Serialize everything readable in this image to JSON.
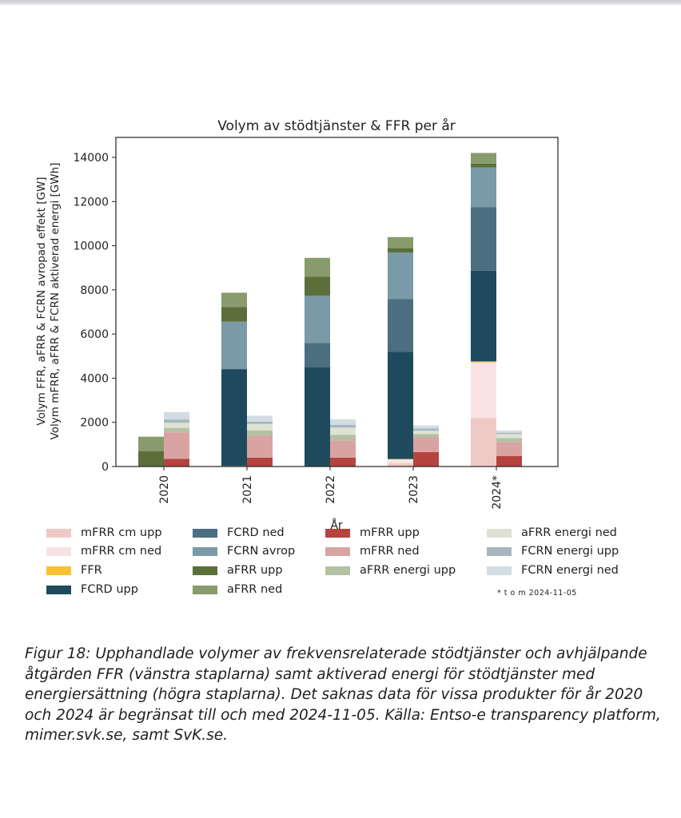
{
  "chart_data": {
    "type": "bar",
    "stacked": true,
    "title": "Volym av stödtjänster & FFR per år",
    "xlabel": "År",
    "ylabel_lines": [
      "Volym FFR, aFRR & FCRN avropad effekt [GW]",
      "Volym mFRR, aFRR & FCRN aktiverad energi [GWh]"
    ],
    "ylim": [
      0,
      14800
    ],
    "yticks": [
      0,
      2000,
      4000,
      6000,
      8000,
      10000,
      12000,
      14000
    ],
    "categories": [
      "2020",
      "2021",
      "2022",
      "2023",
      "2024*"
    ],
    "groups": [
      "vänstra staplarna",
      "högra staplarna"
    ],
    "series": [
      {
        "name": "mFRR cm upp",
        "group": 0,
        "color": "#efc9c6",
        "values": [
          0,
          0,
          0,
          150,
          2200
        ]
      },
      {
        "name": "mFRR cm ned",
        "group": 0,
        "color": "#f8e3e2",
        "values": [
          0,
          0,
          0,
          180,
          2520
        ]
      },
      {
        "name": "FFR",
        "group": 0,
        "color": "#f7c136",
        "values": [
          0,
          30,
          20,
          10,
          40
        ]
      },
      {
        "name": "FCRD upp",
        "group": 0,
        "color": "#1f4a5e",
        "values": [
          0,
          4380,
          4480,
          4850,
          4110
        ]
      },
      {
        "name": "FCRD ned",
        "group": 0,
        "color": "#4b6e80",
        "values": [
          0,
          0,
          1100,
          2400,
          2880
        ]
      },
      {
        "name": "FCRN avrop",
        "group": 0,
        "color": "#7a9aa7",
        "values": [
          0,
          2150,
          2140,
          2100,
          1790
        ]
      },
      {
        "name": "aFRR upp",
        "group": 0,
        "color": "#5b6f3b",
        "values": [
          700,
          660,
          850,
          200,
          180
        ]
      },
      {
        "name": "aFRR ned",
        "group": 0,
        "color": "#889b6c",
        "values": [
          650,
          650,
          860,
          500,
          480
        ]
      },
      {
        "name": "mFRR upp",
        "group": 1,
        "color": "#b5433f",
        "values": [
          350,
          400,
          400,
          650,
          480
        ]
      },
      {
        "name": "mFRR ned",
        "group": 1,
        "color": "#d9a3a2",
        "values": [
          1200,
          1000,
          780,
          670,
          630
        ]
      },
      {
        "name": "aFRR energi upp",
        "group": 1,
        "color": "#b3c1a2",
        "values": [
          200,
          230,
          260,
          150,
          180
        ]
      },
      {
        "name": "aFRR energi ned",
        "group": 1,
        "color": "#dde2d2",
        "values": [
          230,
          300,
          320,
          150,
          180
        ]
      },
      {
        "name": "FCRN energi upp",
        "group": 1,
        "color": "#a6b6bf",
        "values": [
          150,
          100,
          130,
          100,
          60
        ]
      },
      {
        "name": "FCRN energi ned",
        "group": 1,
        "color": "#d2dce1",
        "values": [
          330,
          270,
          250,
          140,
          100
        ]
      }
    ],
    "legend_columns": [
      [
        "mFRR cm upp",
        "mFRR cm ned",
        "FFR",
        "FCRD upp"
      ],
      [
        "FCRD ned",
        "FCRN avrop",
        "aFRR upp",
        "aFRR ned"
      ],
      [
        "mFRR upp",
        "mFRR ned",
        "aFRR energi upp"
      ],
      [
        "aFRR energi ned",
        "FCRN energi upp",
        "FCRN energi ned"
      ]
    ],
    "footnote": "* t o m 2024-11-05"
  },
  "caption": "Figur 18: Upphandlade volymer av frekvensrelaterade stödtjänster och avhjälpande åtgärden FFR (vänstra staplarna) samt aktiverad energi för stödtjänster med energiersättning (högra staplarna). Det saknas data för vissa produkter för år 2020 och 2024 är begränsat till och med 2024-11-05. Källa: Entso-e transparency platform, mimer.svk.se, samt SvK.se."
}
